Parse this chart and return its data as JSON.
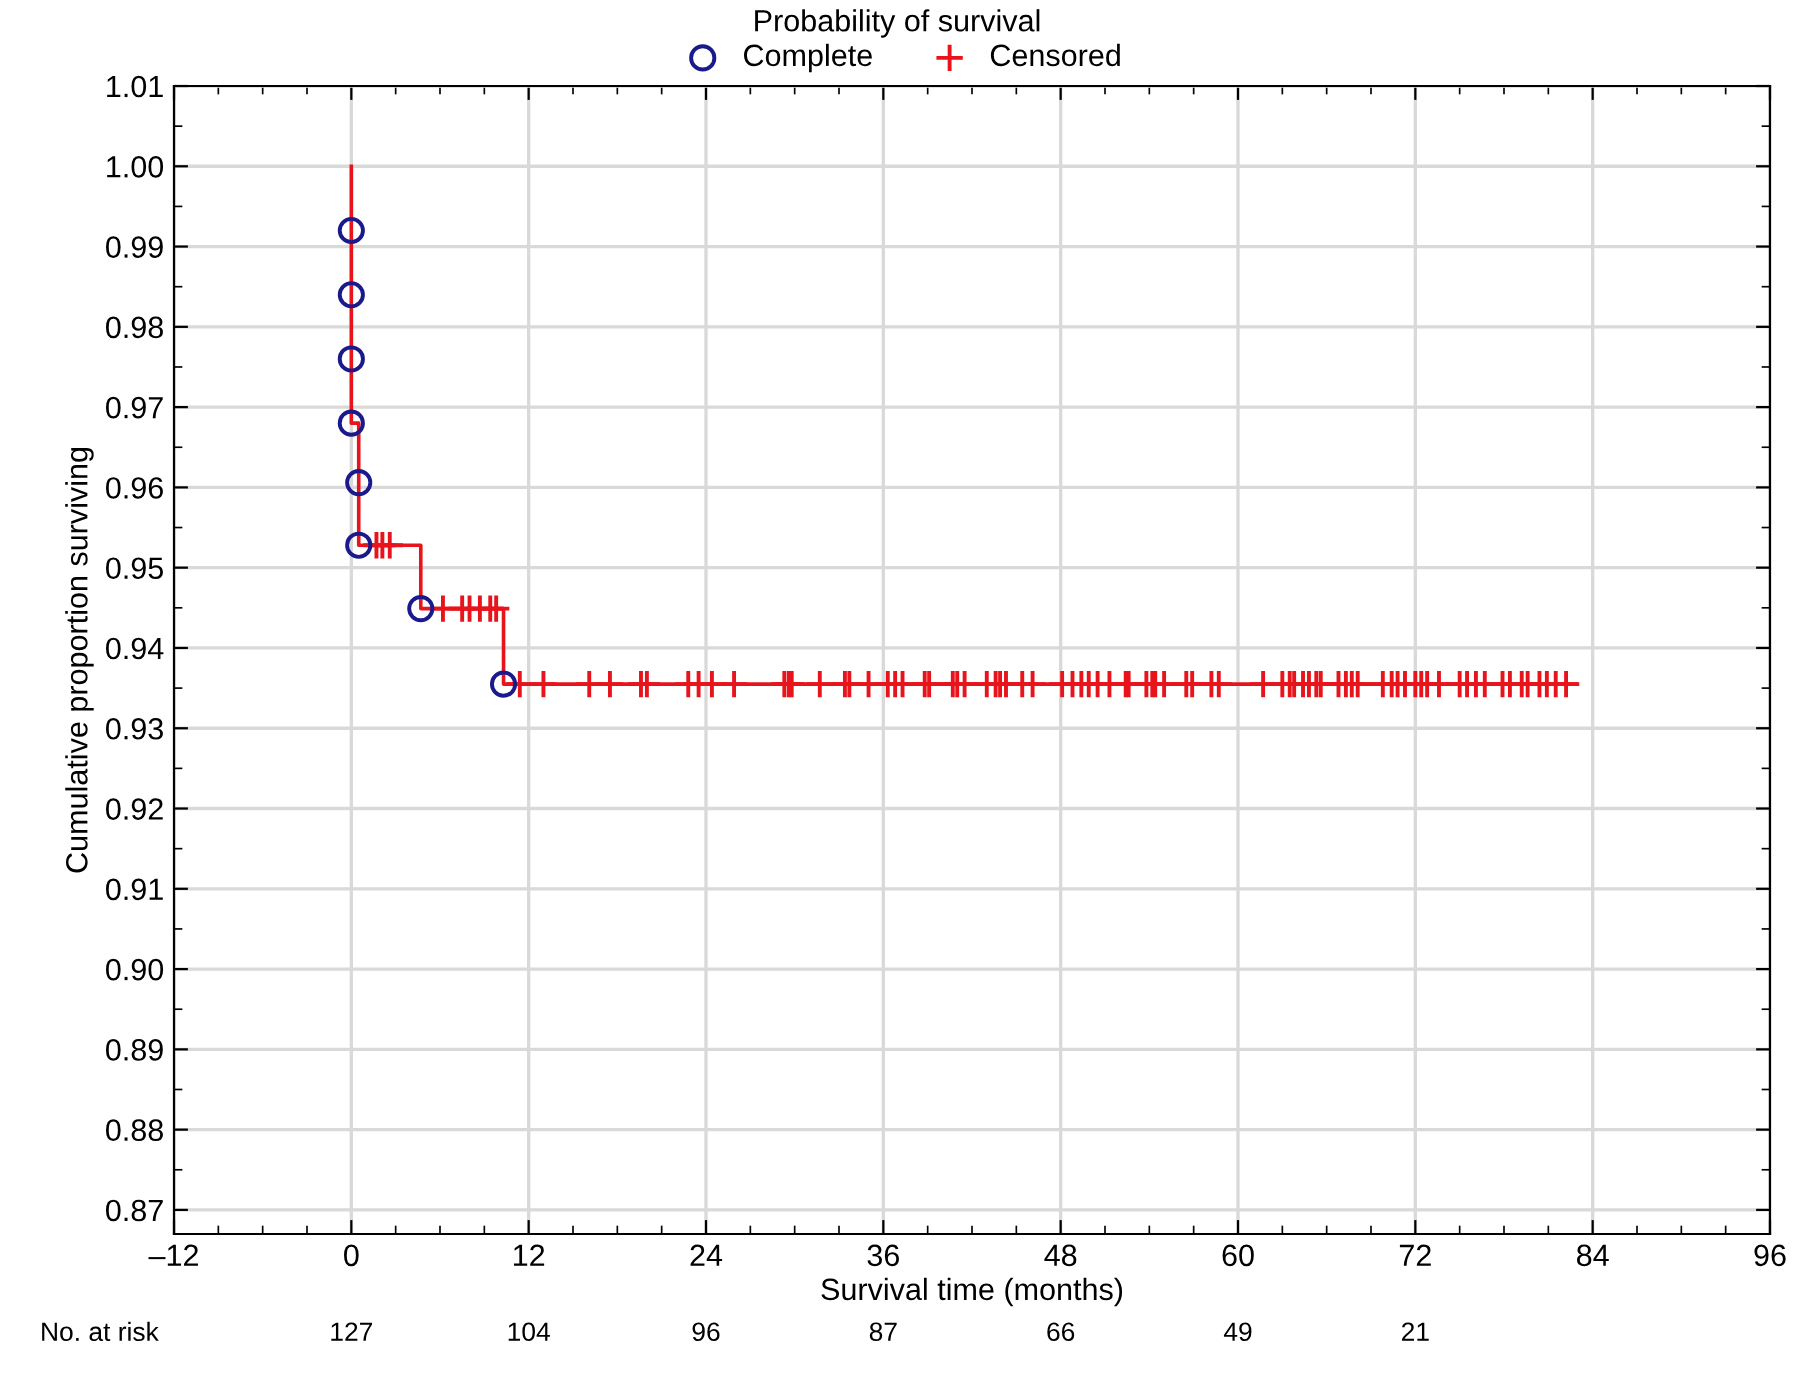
{
  "chart_data": {
    "type": "step",
    "legend_title": "Probability of survival",
    "xlabel": "Survival time (months)",
    "ylabel": "Cumulative proportion surviving",
    "series": [
      {
        "color": "#e8141c",
        "x": [
          0,
          0,
          0,
          0,
          0,
          0.5,
          0.5,
          4.7,
          10.3,
          82.9
        ],
        "values": [
          1.0,
          0.992,
          0.984,
          0.976,
          0.968,
          0.9606,
          0.9528,
          0.9449,
          0.9355,
          0.9355
        ]
      },
      {
        "type": "scatter",
        "name": "Complete",
        "marker": "circle",
        "color": "#1a1a8c",
        "x": [
          0,
          0,
          0,
          0,
          0.5,
          0.5,
          4.7,
          10.3
        ],
        "values": [
          0.992,
          0.984,
          0.976,
          0.968,
          0.9606,
          0.9528,
          0.9449,
          0.9355
        ]
      },
      {
        "type": "scatter",
        "name": "Censored",
        "marker": "cross",
        "color": "#e8141c",
        "x": [
          1.7,
          2.1,
          2.6,
          6.2,
          7.5,
          8.0,
          8.7,
          9.4,
          9.8,
          11.4,
          13.0,
          16.1,
          17.5,
          19.6,
          20.0,
          22.8,
          23.5,
          24.4,
          25.9,
          29.3,
          29.6,
          29.8,
          31.7,
          33.4,
          33.7,
          35.0,
          36.3,
          36.8,
          37.3,
          38.8,
          39.1,
          40.7,
          41.0,
          41.5,
          43.0,
          43.6,
          43.9,
          44.3,
          45.4,
          46.1,
          48.1,
          48.8,
          49.4,
          49.9,
          50.5,
          51.3,
          52.4,
          52.6,
          53.8,
          54.2,
          54.4,
          55.0,
          56.5,
          56.9,
          58.2,
          58.7,
          61.7,
          63.0,
          63.5,
          63.8,
          64.4,
          64.8,
          65.3,
          65.6,
          66.8,
          67.3,
          67.7,
          68.1,
          69.8,
          70.4,
          70.8,
          71.3,
          72.0,
          72.4,
          72.8,
          73.6,
          75.0,
          75.5,
          76.1,
          76.7,
          77.9,
          78.4,
          79.2,
          79.6,
          80.4,
          80.9,
          81.5,
          82.2
        ],
        "values": [
          0.9528,
          0.9528,
          0.9528,
          0.9449,
          0.9449,
          0.9449,
          0.9449,
          0.9449,
          0.9449,
          0.9355,
          0.9355,
          0.9355,
          0.9355,
          0.9355,
          0.9355,
          0.9355,
          0.9355,
          0.9355,
          0.9355,
          0.9355,
          0.9355,
          0.9355,
          0.9355,
          0.9355,
          0.9355,
          0.9355,
          0.9355,
          0.9355,
          0.9355,
          0.9355,
          0.9355,
          0.9355,
          0.9355,
          0.9355,
          0.9355,
          0.9355,
          0.9355,
          0.9355,
          0.9355,
          0.9355,
          0.9355,
          0.9355,
          0.9355,
          0.9355,
          0.9355,
          0.9355,
          0.9355,
          0.9355,
          0.9355,
          0.9355,
          0.9355,
          0.9355,
          0.9355,
          0.9355,
          0.9355,
          0.9355,
          0.9355,
          0.9355,
          0.9355,
          0.9355,
          0.9355,
          0.9355,
          0.9355,
          0.9355,
          0.9355,
          0.9355,
          0.9355,
          0.9355,
          0.9355,
          0.9355,
          0.9355,
          0.9355,
          0.9355,
          0.9355,
          0.9355,
          0.9355,
          0.9355,
          0.9355,
          0.9355,
          0.9355,
          0.9355,
          0.9355,
          0.9355,
          0.9355,
          0.9355,
          0.9355,
          0.9355,
          0.9355
        ]
      }
    ],
    "xlim": [
      -12,
      96
    ],
    "xticks": [
      {
        "value": -12,
        "label": "–12"
      },
      0,
      12,
      24,
      36,
      48,
      60,
      72,
      84,
      96
    ],
    "ylim": [
      0.867,
      1.01
    ],
    "yticks": [
      0.87,
      0.88,
      0.89,
      {
        "value": 0.9,
        "label": "0.90"
      },
      0.91,
      0.92,
      0.93,
      0.94,
      0.95,
      0.96,
      0.97,
      0.98,
      0.99,
      {
        "value": 1.0,
        "label": "1.00"
      },
      1.01
    ],
    "grid": true,
    "legend": "top",
    "annotations": [
      "No. at risk",
      "127",
      "104",
      "96",
      "87",
      "66",
      "49",
      "21"
    ]
  }
}
